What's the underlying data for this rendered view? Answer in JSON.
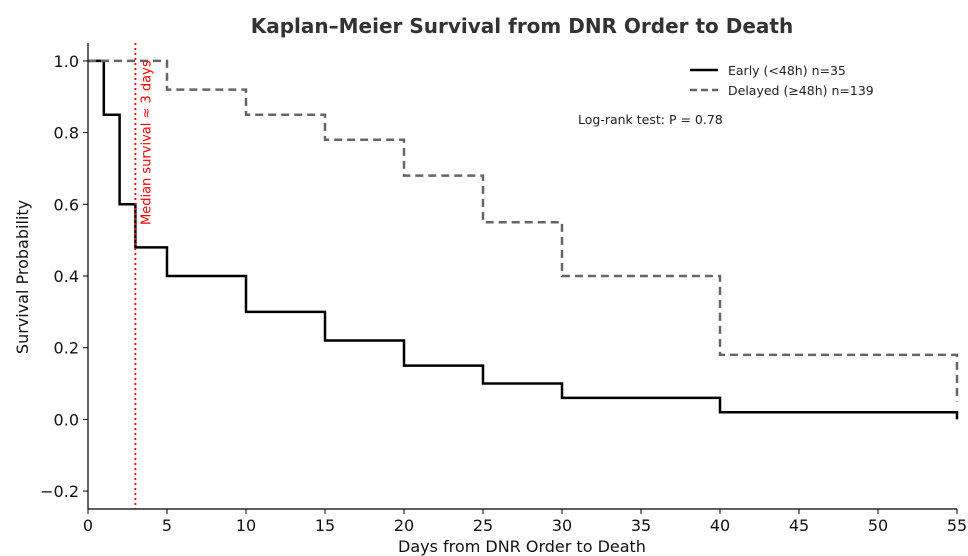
{
  "chart_data": {
    "type": "line",
    "title": "Kaplan–Meier Survival from DNR Order to Death",
    "xlabel": "Days from DNR Order to Death",
    "ylabel": "Survival Probability",
    "xlim": [
      0,
      55
    ],
    "ylim": [
      -0.25,
      1.05
    ],
    "xticks": [
      0,
      5,
      10,
      15,
      20,
      25,
      30,
      35,
      40,
      45,
      50,
      55
    ],
    "yticks": [
      -0.2,
      0.0,
      0.2,
      0.4,
      0.6,
      0.8,
      1.0
    ],
    "xtick_labels": [
      "0",
      "5",
      "10",
      "15",
      "20",
      "25",
      "30",
      "35",
      "40",
      "45",
      "50",
      "55"
    ],
    "ytick_labels": [
      "−0.2",
      "0.0",
      "0.2",
      "0.4",
      "0.6",
      "0.8",
      "1.0"
    ],
    "grid": false,
    "legend_position": "top-right",
    "series": [
      {
        "name": "Early (<48h)  n=35",
        "style": "solid",
        "color": "#000000",
        "step": "post",
        "x": [
          0,
          1,
          2,
          3,
          5,
          10,
          15,
          20,
          25,
          30,
          40,
          55
        ],
        "y": [
          1.0,
          0.85,
          0.6,
          0.48,
          0.4,
          0.3,
          0.22,
          0.15,
          0.1,
          0.06,
          0.02,
          0.0
        ]
      },
      {
        "name": "Delayed (≥48h)  n=139",
        "style": "dashed",
        "color": "#666666",
        "step": "post",
        "x": [
          0,
          5,
          10,
          15,
          20,
          25,
          30,
          40,
          55
        ],
        "y": [
          1.0,
          0.92,
          0.85,
          0.78,
          0.68,
          0.55,
          0.4,
          0.18,
          0.05
        ]
      }
    ],
    "annotations": {
      "logrank_text": "Log-rank test: P = 0.78",
      "median_line": {
        "x": 3,
        "label": "Median survival ≈ 3 days",
        "color": "#ff0000",
        "style": "dotted"
      }
    }
  }
}
